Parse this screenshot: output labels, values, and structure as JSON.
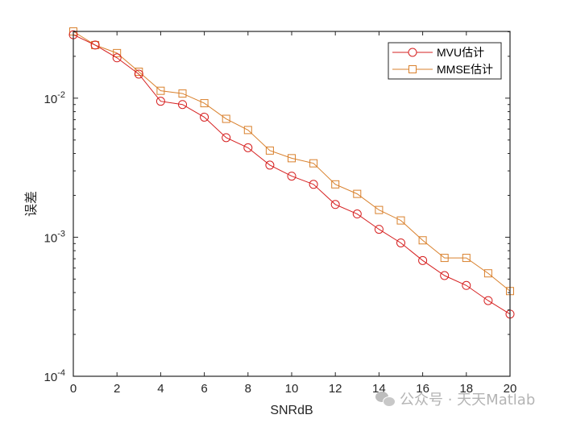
{
  "chart_data": {
    "type": "line",
    "title": "",
    "xlabel": "SNRdB",
    "ylabel": "误差",
    "yscale": "log",
    "xlim": [
      0,
      20
    ],
    "ylim": [
      0.0001,
      0.0302
    ],
    "grid": false,
    "legend_position": "upper right",
    "x": [
      0,
      1,
      2,
      3,
      4,
      5,
      6,
      7,
      8,
      9,
      10,
      11,
      12,
      13,
      14,
      15,
      16,
      17,
      18,
      19,
      20
    ],
    "x_ticks": [
      "0",
      "2",
      "4",
      "6",
      "8",
      "10",
      "12",
      "14",
      "16",
      "18",
      "20"
    ],
    "y_ticks": [
      {
        "base": "10",
        "exp": "-2",
        "value": 0.01
      },
      {
        "base": "10",
        "exp": "-3",
        "value": 0.001
      },
      {
        "base": "10",
        "exp": "-4",
        "value": 0.0001
      }
    ],
    "series": [
      {
        "name": "MVU估计",
        "marker": "circle",
        "color": "#d62020",
        "values": [
          0.0286,
          0.0241,
          0.0195,
          0.0149,
          0.0095,
          0.009,
          0.0073,
          0.0052,
          0.0044,
          0.0033,
          0.00275,
          0.0024,
          0.00172,
          0.00147,
          0.00114,
          0.00091,
          0.00068,
          0.00053,
          0.00045,
          0.00035,
          0.00028
        ]
      },
      {
        "name": "MMSE估计",
        "marker": "square",
        "color": "#d9802c",
        "values": [
          0.0302,
          0.0241,
          0.0211,
          0.0155,
          0.0113,
          0.0108,
          0.0092,
          0.0071,
          0.0059,
          0.0042,
          0.0037,
          0.0034,
          0.0024,
          0.00205,
          0.00157,
          0.00132,
          0.00095,
          0.00071,
          0.00071,
          0.00055,
          0.00041
        ]
      }
    ]
  },
  "watermark": {
    "text": "公众号 · 天天Matlab"
  }
}
